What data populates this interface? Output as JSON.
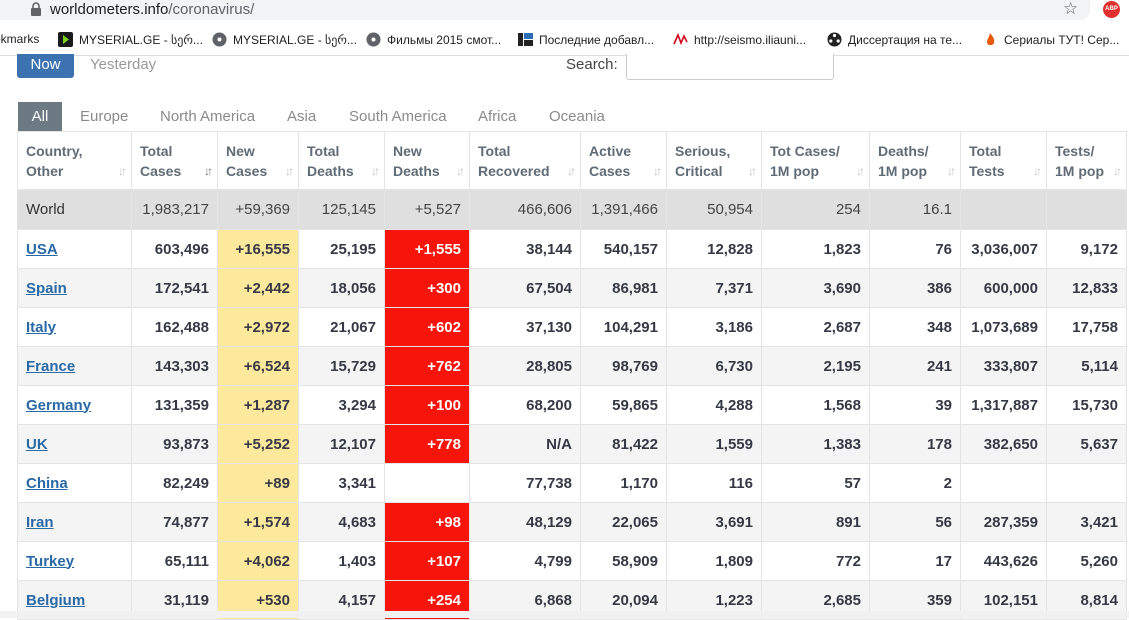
{
  "browser": {
    "url_host": "worldometers.info",
    "url_path": "/coronavirus/",
    "bookmarks": [
      {
        "label": "okmarks",
        "icon": "none"
      },
      {
        "label": "MYSERIAL.GE - სერ...",
        "icon": "play-icon"
      },
      {
        "label": "MYSERIAL.GE - სერ...",
        "icon": "film-icon"
      },
      {
        "label": "Фильмы 2015 смот...",
        "icon": "film-icon"
      },
      {
        "label": "Последние добавл...",
        "icon": "filmstrip-icon"
      },
      {
        "label": "http://seismo.iliauni...",
        "icon": "wave-icon"
      },
      {
        "label": "Диссертация на те...",
        "icon": "reel-icon"
      },
      {
        "label": "Сериалы ТУТ! Сер...",
        "icon": "flame-icon"
      }
    ],
    "abp_label": "ABP"
  },
  "controls": {
    "now_label": "Now",
    "yesterday_label": "Yesterday",
    "search_label": "Search:",
    "search_value": ""
  },
  "tabs": [
    "All",
    "Europe",
    "North America",
    "Asia",
    "South America",
    "Africa",
    "Oceania"
  ],
  "active_tab": "All",
  "table": {
    "headers": [
      [
        "Country,",
        "Other"
      ],
      [
        "Total",
        "Cases"
      ],
      [
        "New",
        "Cases"
      ],
      [
        "Total",
        "Deaths"
      ],
      [
        "New",
        "Deaths"
      ],
      [
        "Total",
        "Recovered"
      ],
      [
        "Active",
        "Cases"
      ],
      [
        "Serious,",
        "Critical"
      ],
      [
        "Tot Cases/",
        "1M pop"
      ],
      [
        "Deaths/",
        "1M pop"
      ],
      [
        "Total",
        "Tests"
      ],
      [
        "Tests/",
        "1M pop"
      ]
    ],
    "world": [
      "World",
      "1,983,217",
      "+59,369",
      "125,145",
      "+5,527",
      "466,606",
      "1,391,466",
      "50,954",
      "254",
      "16.1",
      "",
      ""
    ],
    "rows": [
      [
        "USA",
        "603,496",
        "+16,555",
        "25,195",
        "+1,555",
        "38,144",
        "540,157",
        "12,828",
        "1,823",
        "76",
        "3,036,007",
        "9,172"
      ],
      [
        "Spain",
        "172,541",
        "+2,442",
        "18,056",
        "+300",
        "67,504",
        "86,981",
        "7,371",
        "3,690",
        "386",
        "600,000",
        "12,833"
      ],
      [
        "Italy",
        "162,488",
        "+2,972",
        "21,067",
        "+602",
        "37,130",
        "104,291",
        "3,186",
        "2,687",
        "348",
        "1,073,689",
        "17,758"
      ],
      [
        "France",
        "143,303",
        "+6,524",
        "15,729",
        "+762",
        "28,805",
        "98,769",
        "6,730",
        "2,195",
        "241",
        "333,807",
        "5,114"
      ],
      [
        "Germany",
        "131,359",
        "+1,287",
        "3,294",
        "+100",
        "68,200",
        "59,865",
        "4,288",
        "1,568",
        "39",
        "1,317,887",
        "15,730"
      ],
      [
        "UK",
        "93,873",
        "+5,252",
        "12,107",
        "+778",
        "N/A",
        "81,422",
        "1,559",
        "1,383",
        "178",
        "382,650",
        "5,637"
      ],
      [
        "China",
        "82,249",
        "+89",
        "3,341",
        "",
        "77,738",
        "1,170",
        "116",
        "57",
        "2",
        "",
        ""
      ],
      [
        "Iran",
        "74,877",
        "+1,574",
        "4,683",
        "+98",
        "48,129",
        "22,065",
        "3,691",
        "891",
        "56",
        "287,359",
        "3,421"
      ],
      [
        "Turkey",
        "65,111",
        "+4,062",
        "1,403",
        "+107",
        "4,799",
        "58,909",
        "1,809",
        "772",
        "17",
        "443,626",
        "5,260"
      ],
      [
        "Belgium",
        "31,119",
        "+530",
        "4,157",
        "+254",
        "6,868",
        "20,094",
        "1,223",
        "2,685",
        "359",
        "102,151",
        "8,814"
      ]
    ]
  },
  "colors": {
    "now_button": "#3d72b0",
    "new_cases_bg": "#fde99c",
    "new_deaths_bg": "#f7150b",
    "world_row_bg": "#dfdfdf",
    "country_link": "#2969a6"
  }
}
